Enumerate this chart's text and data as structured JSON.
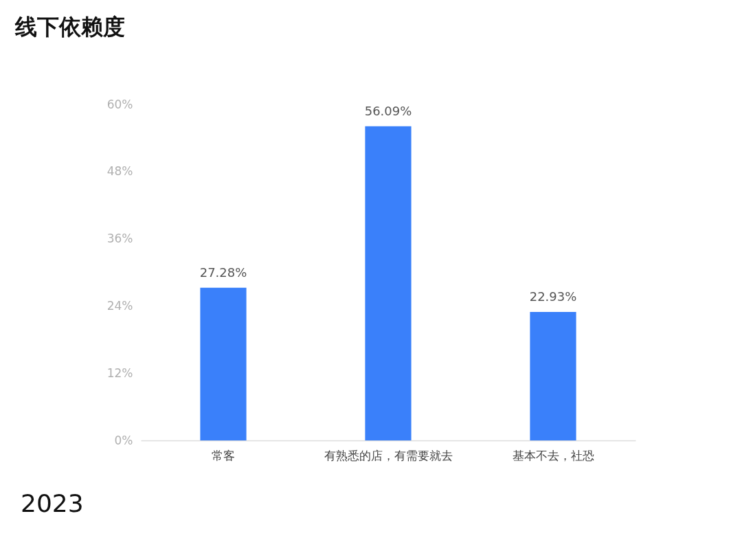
{
  "chart_data": {
    "type": "bar",
    "title": "线下依赖度",
    "categories": [
      "常客",
      "有熟悉的店，有需要就去",
      "基本不去，社恐"
    ],
    "values": [
      27.28,
      56.09,
      22.93
    ],
    "value_labels": [
      "27.28%",
      "56.09%",
      "22.93%"
    ],
    "color": "#3a80fa",
    "ylim": [
      0,
      60
    ],
    "yticks": [
      {
        "value": 0,
        "label": "0%"
      },
      {
        "value": 12,
        "label": "12%"
      },
      {
        "value": 24,
        "label": "24%"
      },
      {
        "value": 36,
        "label": "36%"
      },
      {
        "value": 48,
        "label": "48%"
      },
      {
        "value": 60,
        "label": "60%"
      }
    ],
    "grid": false,
    "annotations": [
      "2023"
    ]
  }
}
